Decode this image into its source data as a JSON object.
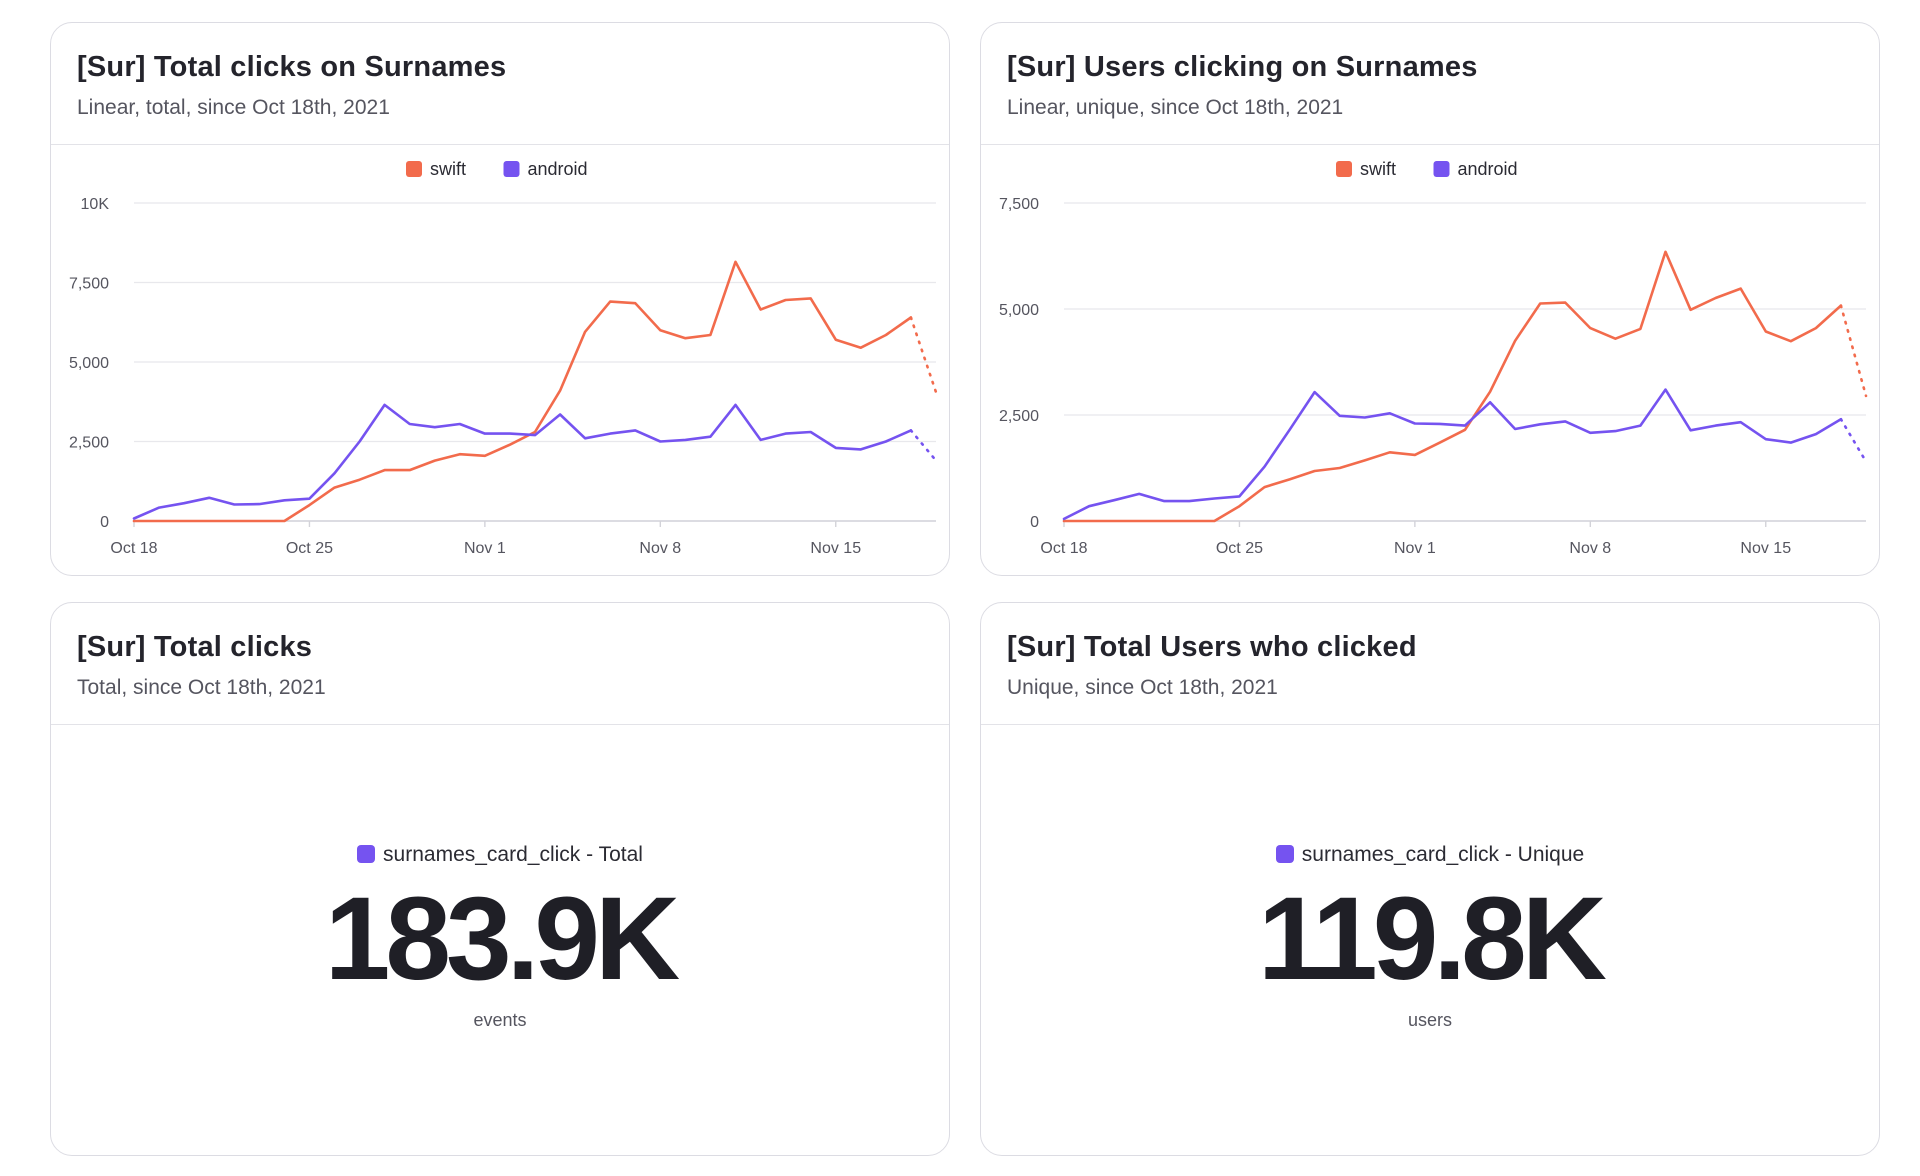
{
  "colors": {
    "swift": "#f26b4c",
    "android": "#7553f0",
    "grid": "#e8e8ec",
    "axis_text": "#55555f"
  },
  "cards": {
    "total_clicks_chart": {
      "title": "[Sur] Total clicks on Surnames",
      "subtitle": "Linear, total, since Oct 18th, 2021"
    },
    "users_clicking_chart": {
      "title": "[Sur] Users clicking on Surnames",
      "subtitle": "Linear, unique, since Oct 18th, 2021"
    },
    "total_clicks_kpi": {
      "title": "[Sur] Total clicks",
      "subtitle": "Total, since Oct 18th, 2021",
      "legend": "surnames_card_click - Total",
      "value": "183.9K",
      "unit": "events"
    },
    "total_users_kpi": {
      "title": "[Sur] Total Users who clicked",
      "subtitle": "Unique, since Oct 18th, 2021",
      "legend": "surnames_card_click - Unique",
      "value": "119.8K",
      "unit": "users"
    }
  },
  "chart_data": [
    {
      "type": "line",
      "title": "[Sur] Total clicks on Surnames",
      "x": [
        "Oct 18",
        "Oct 19",
        "Oct 20",
        "Oct 21",
        "Oct 22",
        "Oct 23",
        "Oct 24",
        "Oct 25",
        "Oct 26",
        "Oct 27",
        "Oct 28",
        "Oct 29",
        "Oct 30",
        "Oct 31",
        "Nov 1",
        "Nov 2",
        "Nov 3",
        "Nov 4",
        "Nov 5",
        "Nov 6",
        "Nov 7",
        "Nov 8",
        "Nov 9",
        "Nov 10",
        "Nov 11",
        "Nov 12",
        "Nov 13",
        "Nov 14",
        "Nov 15",
        "Nov 16",
        "Nov 17",
        "Nov 18",
        "Nov 19"
      ],
      "x_ticks": [
        "Oct 18",
        "Oct 25",
        "Nov 1",
        "Nov 8",
        "Nov 15"
      ],
      "y_ticks": [
        "0",
        "2,500",
        "5,000",
        "7,500",
        "10K"
      ],
      "ylim": [
        0,
        10000
      ],
      "legend_position": "top-center",
      "grid": true,
      "partial_last_point": true,
      "series": [
        {
          "name": "swift",
          "color": "#f26b4c",
          "values": [
            0,
            0,
            0,
            0,
            0,
            0,
            0,
            500,
            1050,
            1300,
            1600,
            1600,
            1900,
            2100,
            2050,
            2400,
            2800,
            4100,
            5950,
            6900,
            6850,
            6000,
            5750,
            5850,
            8150,
            6650,
            6950,
            7000,
            5700,
            5450,
            5850,
            6400,
            4050
          ]
        },
        {
          "name": "android",
          "color": "#7553f0",
          "values": [
            80,
            420,
            560,
            730,
            520,
            530,
            650,
            700,
            1500,
            2500,
            3650,
            3050,
            2950,
            3050,
            2750,
            2750,
            2700,
            3350,
            2600,
            2750,
            2850,
            2500,
            2550,
            2650,
            3650,
            2550,
            2750,
            2800,
            2300,
            2250,
            2500,
            2850,
            1900
          ]
        }
      ]
    },
    {
      "type": "line",
      "title": "[Sur] Users clicking on Surnames",
      "x": [
        "Oct 18",
        "Oct 19",
        "Oct 20",
        "Oct 21",
        "Oct 22",
        "Oct 23",
        "Oct 24",
        "Oct 25",
        "Oct 26",
        "Oct 27",
        "Oct 28",
        "Oct 29",
        "Oct 30",
        "Oct 31",
        "Nov 1",
        "Nov 2",
        "Nov 3",
        "Nov 4",
        "Nov 5",
        "Nov 6",
        "Nov 7",
        "Nov 8",
        "Nov 9",
        "Nov 10",
        "Nov 11",
        "Nov 12",
        "Nov 13",
        "Nov 14",
        "Nov 15",
        "Nov 16",
        "Nov 17",
        "Nov 18",
        "Nov 19"
      ],
      "x_ticks": [
        "Oct 18",
        "Oct 25",
        "Nov 1",
        "Nov 8",
        "Nov 15"
      ],
      "y_ticks": [
        "0",
        "2,500",
        "5,000",
        "7,500"
      ],
      "ylim": [
        0,
        7500
      ],
      "legend_position": "top-center",
      "grid": true,
      "partial_last_point": true,
      "series": [
        {
          "name": "swift",
          "color": "#f26b4c",
          "values": [
            0,
            0,
            0,
            0,
            0,
            0,
            0,
            350,
            800,
            980,
            1180,
            1250,
            1430,
            1620,
            1560,
            1850,
            2150,
            3050,
            4250,
            5130,
            5150,
            4550,
            4300,
            4530,
            6350,
            4980,
            5260,
            5480,
            4470,
            4240,
            4550,
            5080,
            2950
          ]
        },
        {
          "name": "android",
          "color": "#7553f0",
          "values": [
            50,
            350,
            490,
            640,
            470,
            470,
            530,
            580,
            1280,
            2150,
            3040,
            2480,
            2440,
            2540,
            2300,
            2290,
            2250,
            2800,
            2170,
            2280,
            2350,
            2080,
            2120,
            2250,
            3100,
            2140,
            2250,
            2330,
            1930,
            1850,
            2050,
            2400,
            1400
          ]
        }
      ]
    }
  ]
}
